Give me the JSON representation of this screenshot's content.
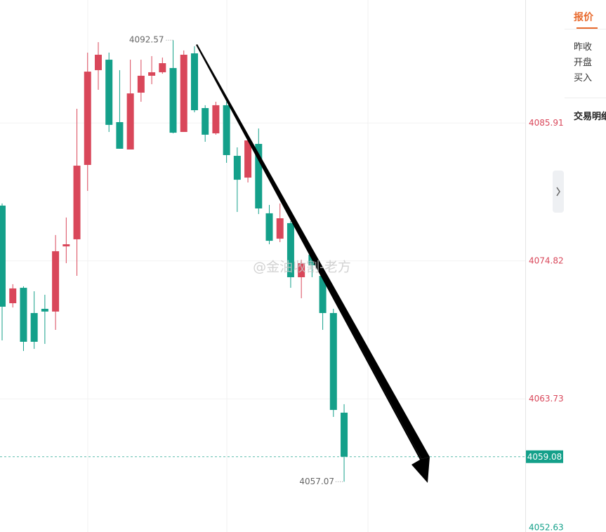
{
  "chart_data": {
    "type": "candlestick",
    "open": [
      4079.27,
      4071.42,
      4072.66,
      4070.63,
      4070.97,
      4070.75,
      4075.99,
      4076.56,
      4082.54,
      4090.16,
      4091.0,
      4085.98,
      4083.78,
      4088.35,
      4089.71,
      4089.99,
      4090.33,
      4085.19,
      4091.51,
      4087.11,
      4085.08,
      4087.34,
      4083.27,
      4081.52,
      4084.23,
      4078.65,
      4076.61,
      4077.86,
      4073.51,
      4075.32,
      4073.62,
      4070.63,
      4062.62
    ],
    "high": [
      4079.44,
      4072.95,
      4072.78,
      4072.38,
      4072.1,
      4076.9,
      4078.31,
      4087.05,
      4091.57,
      4092.41,
      4091.57,
      4090.16,
      4091.0,
      4091.0,
      4091.29,
      4091.17,
      4092.57,
      4091.74,
      4092.08,
      4087.34,
      4087.62,
      4087.62,
      4083.95,
      4084.74,
      4085.47,
      4079.32,
      4079.44,
      4078.02,
      4074.92,
      4075.6,
      4074.07,
      4070.97,
      4063.3
    ],
    "low": [
      4068.43,
      4071.08,
      4067.58,
      4067.75,
      4068.15,
      4069.28,
      4074.64,
      4073.62,
      4080.45,
      4088.58,
      4085.19,
      4083.84,
      4083.78,
      4087.62,
      4089.03,
      4089.87,
      4085.08,
      4085.19,
      4086.77,
      4084.4,
      4084.97,
      4082.71,
      4078.76,
      4081.13,
      4078.59,
      4076.16,
      4076.33,
      4072.66,
      4071.82,
      4073.51,
      4069.28,
      4062.28,
      4057.07
    ],
    "close": [
      4071.14,
      4072.61,
      4068.32,
      4068.32,
      4070.75,
      4075.6,
      4076.16,
      4082.48,
      4090.04,
      4091.4,
      4085.76,
      4083.84,
      4088.29,
      4089.71,
      4089.99,
      4090.72,
      4085.13,
      4091.4,
      4086.94,
      4084.97,
      4087.34,
      4083.33,
      4081.35,
      4084.51,
      4079.04,
      4076.44,
      4078.25,
      4073.51,
      4074.64,
      4074.47,
      4070.63,
      4062.84,
      4059.08
    ],
    "up_color": "#d9475a",
    "down_color": "#14a08a",
    "ylim": [
      4052.63,
      4095.8
    ],
    "yticks": [
      4052.63,
      4063.73,
      4074.82,
      4085.91
    ],
    "grid": true,
    "last_price_line": true,
    "watermark": "@金油收割-老方"
  },
  "side_panel": {
    "tab": "报价",
    "rows": [
      "昨收",
      "开盘",
      "买入"
    ],
    "section": "交易明细"
  }
}
